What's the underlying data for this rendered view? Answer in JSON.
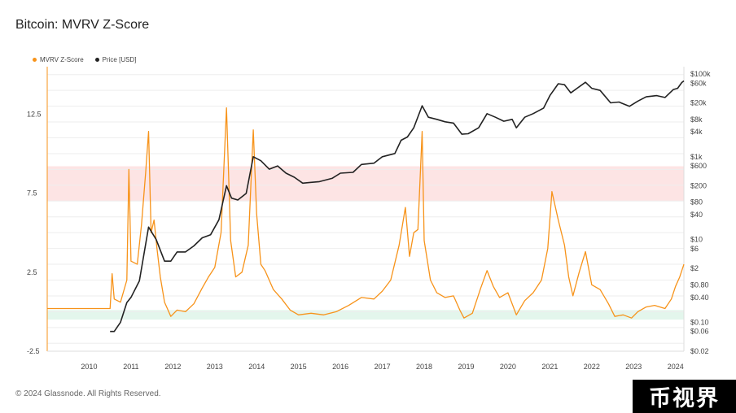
{
  "page": {
    "title": "Bitcoin: MVRV Z-Score",
    "footer": "© 2024 Glassnode. All Rights Reserved.",
    "watermark": "币视界"
  },
  "legend": {
    "items": [
      {
        "label": "MVRV Z-Score",
        "color": "#f7931a"
      },
      {
        "label": "Price [USD]",
        "color": "#222222"
      }
    ]
  },
  "chart_data": {
    "type": "line",
    "title": "Bitcoin: MVRV Z-Score",
    "xlim": [
      2009.0,
      2024.2
    ],
    "x_ticks": [
      "2010",
      "2011",
      "2012",
      "2013",
      "2014",
      "2015",
      "2016",
      "2017",
      "2018",
      "2019",
      "2020",
      "2021",
      "2022",
      "2023",
      "2024"
    ],
    "y_left": {
      "lim": [
        -2.5,
        15.5
      ],
      "ticks": [
        12.5,
        7.5,
        2.5,
        -2.5
      ],
      "tick_labels": [
        "12.5",
        "7.5",
        "2.5",
        "-2.5"
      ]
    },
    "y_right": {
      "scale": "log",
      "lim": [
        0.02,
        150000
      ],
      "ticks": [
        100000,
        60000,
        20000,
        8000,
        4000,
        1000,
        600,
        200,
        80,
        40,
        10,
        6,
        2,
        0.8,
        0.4,
        0.1,
        0.06,
        0.02
      ],
      "tick_labels": [
        "$100k",
        "$60k",
        "$20k",
        "$8k",
        "$4k",
        "$1k",
        "$600",
        "$200",
        "$80",
        "$40",
        "$10",
        "$6",
        "$2",
        "$0.80",
        "$0.40",
        "$0.10",
        "$0.06",
        "$0.02"
      ]
    },
    "bands": [
      {
        "y0": 7.0,
        "y1": 9.2,
        "color": "#fde4e4"
      },
      {
        "y0": -0.5,
        "y1": 0.1,
        "color": "#e3f6ec"
      }
    ],
    "series": [
      {
        "name": "MVRV Z-Score",
        "axis": "left",
        "color": "#f7931a",
        "points": [
          [
            2009.0,
            0.2
          ],
          [
            2010.5,
            0.2
          ],
          [
            2010.55,
            2.4
          ],
          [
            2010.6,
            0.8
          ],
          [
            2010.75,
            0.6
          ],
          [
            2010.9,
            2.0
          ],
          [
            2010.95,
            9.0
          ],
          [
            2011.0,
            3.2
          ],
          [
            2011.15,
            3.0
          ],
          [
            2011.25,
            5.5
          ],
          [
            2011.35,
            8.8
          ],
          [
            2011.42,
            11.4
          ],
          [
            2011.48,
            5.0
          ],
          [
            2011.55,
            5.8
          ],
          [
            2011.62,
            4.0
          ],
          [
            2011.7,
            2.2
          ],
          [
            2011.8,
            0.6
          ],
          [
            2011.95,
            -0.3
          ],
          [
            2012.1,
            0.1
          ],
          [
            2012.3,
            0.0
          ],
          [
            2012.5,
            0.5
          ],
          [
            2012.7,
            1.5
          ],
          [
            2012.85,
            2.2
          ],
          [
            2013.0,
            2.8
          ],
          [
            2013.15,
            5.0
          ],
          [
            2013.28,
            12.9
          ],
          [
            2013.38,
            4.5
          ],
          [
            2013.5,
            2.2
          ],
          [
            2013.65,
            2.5
          ],
          [
            2013.8,
            4.2
          ],
          [
            2013.92,
            11.5
          ],
          [
            2014.0,
            6.2
          ],
          [
            2014.1,
            3.0
          ],
          [
            2014.2,
            2.6
          ],
          [
            2014.4,
            1.4
          ],
          [
            2014.6,
            0.8
          ],
          [
            2014.8,
            0.1
          ],
          [
            2015.0,
            -0.2
          ],
          [
            2015.3,
            -0.1
          ],
          [
            2015.6,
            -0.2
          ],
          [
            2015.9,
            0.0
          ],
          [
            2016.2,
            0.4
          ],
          [
            2016.5,
            0.9
          ],
          [
            2016.8,
            0.8
          ],
          [
            2017.0,
            1.3
          ],
          [
            2017.2,
            2.0
          ],
          [
            2017.4,
            4.2
          ],
          [
            2017.55,
            6.6
          ],
          [
            2017.65,
            3.5
          ],
          [
            2017.75,
            5.0
          ],
          [
            2017.85,
            5.2
          ],
          [
            2017.95,
            11.4
          ],
          [
            2018.0,
            4.5
          ],
          [
            2018.15,
            2.0
          ],
          [
            2018.3,
            1.2
          ],
          [
            2018.5,
            0.9
          ],
          [
            2018.7,
            1.0
          ],
          [
            2018.85,
            0.1
          ],
          [
            2018.95,
            -0.4
          ],
          [
            2019.15,
            -0.1
          ],
          [
            2019.35,
            1.5
          ],
          [
            2019.5,
            2.6
          ],
          [
            2019.65,
            1.6
          ],
          [
            2019.8,
            0.9
          ],
          [
            2020.0,
            1.2
          ],
          [
            2020.2,
            -0.2
          ],
          [
            2020.4,
            0.7
          ],
          [
            2020.6,
            1.2
          ],
          [
            2020.8,
            2.0
          ],
          [
            2020.95,
            4.0
          ],
          [
            2021.05,
            7.6
          ],
          [
            2021.2,
            5.8
          ],
          [
            2021.35,
            4.2
          ],
          [
            2021.45,
            2.2
          ],
          [
            2021.55,
            1.0
          ],
          [
            2021.7,
            2.5
          ],
          [
            2021.85,
            3.8
          ],
          [
            2022.0,
            1.7
          ],
          [
            2022.2,
            1.4
          ],
          [
            2022.4,
            0.5
          ],
          [
            2022.55,
            -0.3
          ],
          [
            2022.75,
            -0.2
          ],
          [
            2022.95,
            -0.4
          ],
          [
            2023.1,
            0.0
          ],
          [
            2023.3,
            0.3
          ],
          [
            2023.5,
            0.4
          ],
          [
            2023.75,
            0.2
          ],
          [
            2023.9,
            0.8
          ],
          [
            2024.0,
            1.6
          ],
          [
            2024.1,
            2.2
          ],
          [
            2024.2,
            3.0
          ]
        ]
      },
      {
        "name": "Price [USD]",
        "axis": "right",
        "color": "#222222",
        "points": [
          [
            2010.5,
            0.06
          ],
          [
            2010.6,
            0.06
          ],
          [
            2010.75,
            0.1
          ],
          [
            2010.9,
            0.3
          ],
          [
            2011.0,
            0.4
          ],
          [
            2011.2,
            1.0
          ],
          [
            2011.42,
            20
          ],
          [
            2011.6,
            10
          ],
          [
            2011.8,
            3
          ],
          [
            2011.95,
            3
          ],
          [
            2012.1,
            5
          ],
          [
            2012.3,
            5
          ],
          [
            2012.5,
            7
          ],
          [
            2012.7,
            11
          ],
          [
            2012.9,
            13
          ],
          [
            2013.1,
            30
          ],
          [
            2013.28,
            200
          ],
          [
            2013.4,
            100
          ],
          [
            2013.55,
            90
          ],
          [
            2013.75,
            130
          ],
          [
            2013.92,
            1000
          ],
          [
            2014.1,
            800
          ],
          [
            2014.3,
            500
          ],
          [
            2014.5,
            600
          ],
          [
            2014.7,
            400
          ],
          [
            2014.9,
            320
          ],
          [
            2015.1,
            230
          ],
          [
            2015.3,
            240
          ],
          [
            2015.5,
            250
          ],
          [
            2015.8,
            300
          ],
          [
            2016.0,
            400
          ],
          [
            2016.3,
            420
          ],
          [
            2016.5,
            650
          ],
          [
            2016.8,
            700
          ],
          [
            2017.0,
            1000
          ],
          [
            2017.3,
            1200
          ],
          [
            2017.45,
            2500
          ],
          [
            2017.6,
            3000
          ],
          [
            2017.75,
            5000
          ],
          [
            2017.95,
            17000
          ],
          [
            2018.1,
            9000
          ],
          [
            2018.3,
            8000
          ],
          [
            2018.5,
            7000
          ],
          [
            2018.7,
            6500
          ],
          [
            2018.9,
            3500
          ],
          [
            2019.05,
            3600
          ],
          [
            2019.3,
            5000
          ],
          [
            2019.5,
            11000
          ],
          [
            2019.7,
            9000
          ],
          [
            2019.9,
            7200
          ],
          [
            2020.1,
            8000
          ],
          [
            2020.2,
            5000
          ],
          [
            2020.4,
            9000
          ],
          [
            2020.6,
            11000
          ],
          [
            2020.85,
            15000
          ],
          [
            2021.0,
            30000
          ],
          [
            2021.2,
            58000
          ],
          [
            2021.35,
            55000
          ],
          [
            2021.5,
            35000
          ],
          [
            2021.65,
            45000
          ],
          [
            2021.85,
            63000
          ],
          [
            2022.0,
            45000
          ],
          [
            2022.2,
            40000
          ],
          [
            2022.45,
            20000
          ],
          [
            2022.65,
            21000
          ],
          [
            2022.9,
            16500
          ],
          [
            2023.1,
            22000
          ],
          [
            2023.3,
            28000
          ],
          [
            2023.55,
            30000
          ],
          [
            2023.75,
            27000
          ],
          [
            2023.95,
            42000
          ],
          [
            2024.05,
            45000
          ],
          [
            2024.15,
            62000
          ],
          [
            2024.2,
            68000
          ]
        ]
      }
    ]
  }
}
